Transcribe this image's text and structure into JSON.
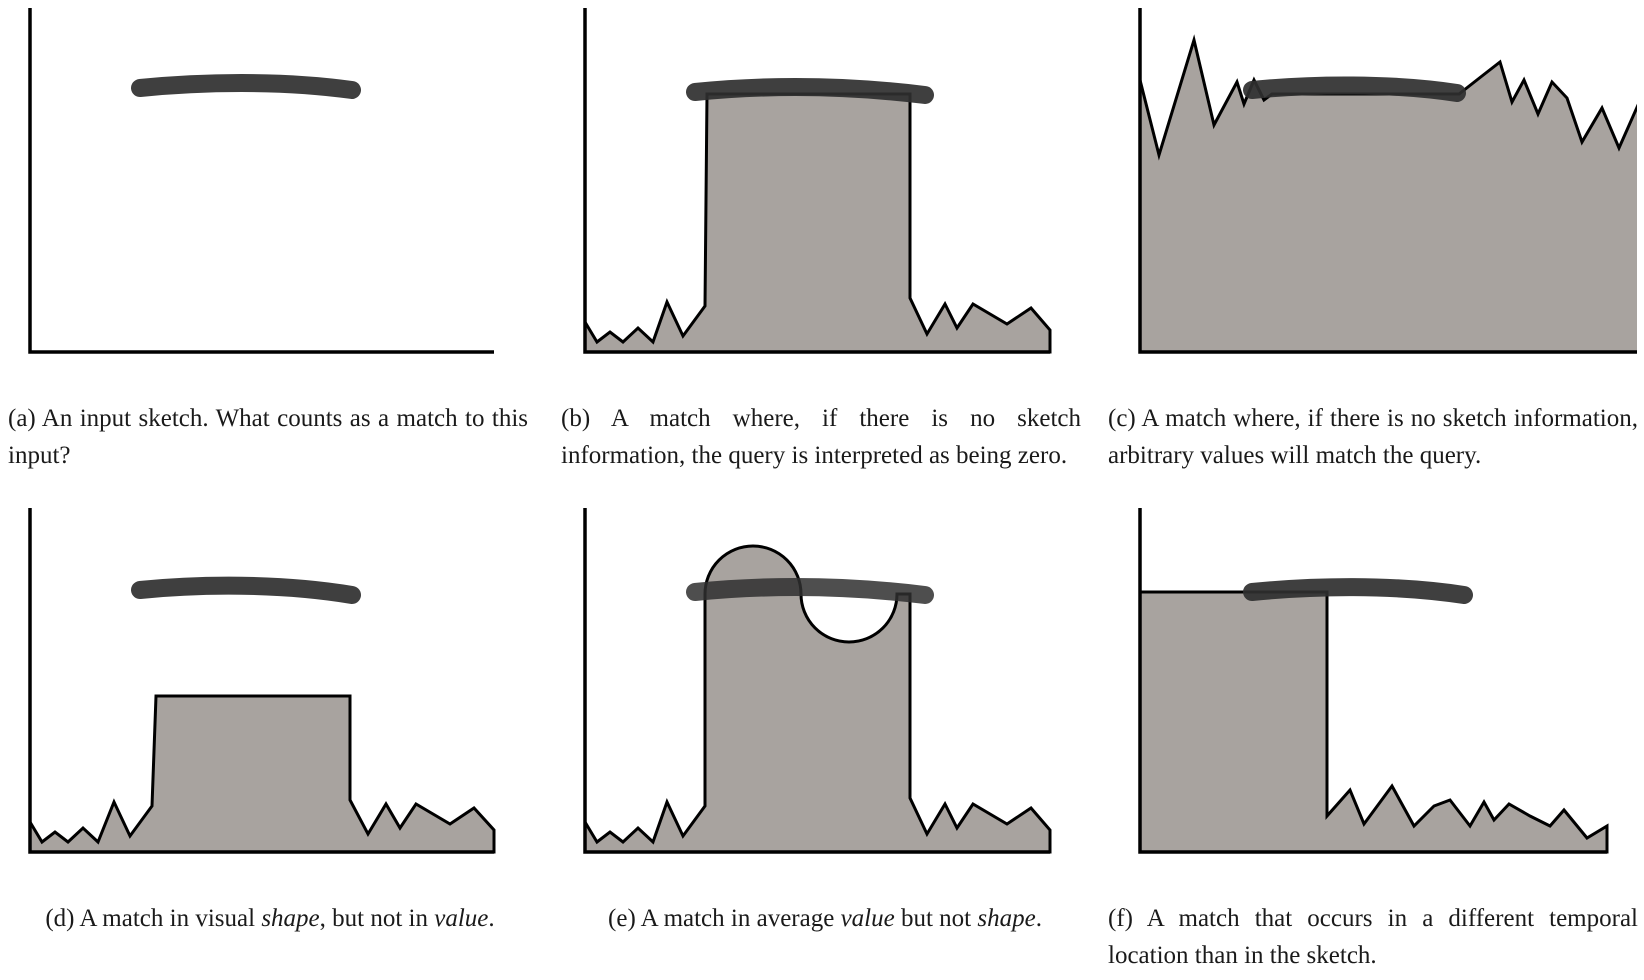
{
  "figure": {
    "panels": [
      {
        "id": "a",
        "caption_parts": [
          {
            "text": "(a) An input sketch.  What counts as a match to this input?",
            "italic": false
          }
        ]
      },
      {
        "id": "b",
        "caption_parts": [
          {
            "text": "(b) A match where, if there is no sketch information, the query is interpreted as being zero.",
            "italic": false
          }
        ]
      },
      {
        "id": "c",
        "caption_parts": [
          {
            "text": "(c) A match where, if there is no sketch information, arbitrary values will match the query.",
            "italic": false
          }
        ]
      },
      {
        "id": "d",
        "caption_parts": [
          {
            "text": "(d) A match in visual ",
            "italic": false
          },
          {
            "text": "shape",
            "italic": true
          },
          {
            "text": ", but not in ",
            "italic": false
          },
          {
            "text": "value",
            "italic": true
          },
          {
            "text": ".",
            "italic": false
          }
        ]
      },
      {
        "id": "e",
        "caption_parts": [
          {
            "text": "(e) A match in average ",
            "italic": false
          },
          {
            "text": "value",
            "italic": true
          },
          {
            "text": " but not ",
            "italic": false
          },
          {
            "text": "shape",
            "italic": true
          },
          {
            "text": ".",
            "italic": false
          }
        ]
      },
      {
        "id": "f",
        "caption_parts": [
          {
            "text": "(f) A match that occurs in a different temporal location than in the sketch.",
            "italic": false
          }
        ]
      }
    ],
    "colors": {
      "area_fill": "#a8a39f",
      "sketch_stroke": "#2f2f2f",
      "axis": "#000000"
    }
  }
}
